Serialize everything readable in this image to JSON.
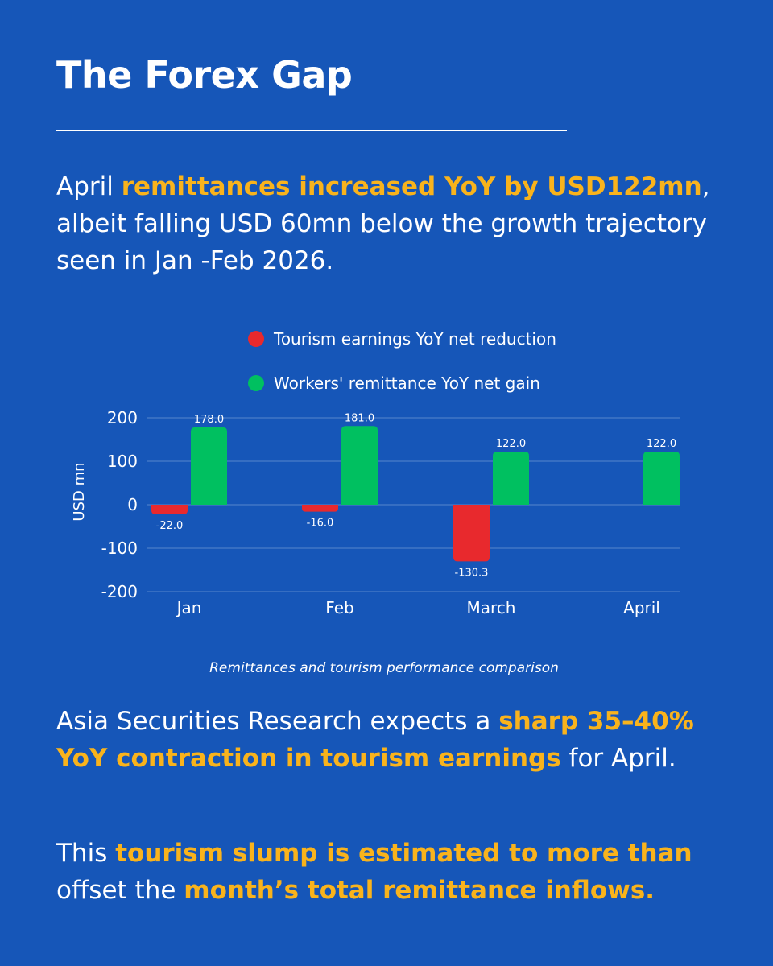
{
  "header": {
    "title": "The Forex Gap"
  },
  "intro": {
    "before": "April ",
    "highlight": "remittances increased YoY by USD122mn",
    "after": ", albeit falling USD 60mn below the growth trajectory seen in Jan -Feb 2026."
  },
  "chart_data": {
    "type": "bar",
    "categories": [
      "Jan",
      "Feb",
      "March",
      "April"
    ],
    "series": [
      {
        "name": "Tourism earnings YoY net reduction",
        "color": "#e8292d",
        "values": [
          -22.0,
          -16.0,
          -130.3,
          null
        ],
        "labels": [
          "-22.0",
          "-16.0",
          "-130.3",
          ""
        ]
      },
      {
        "name": "Workers' remittance YoY net gain",
        "color": "#00c060",
        "values": [
          178.0,
          181.0,
          122.0,
          122.0
        ],
        "labels": [
          "178.0",
          "181.0",
          "122.0",
          "122.0"
        ]
      }
    ],
    "ylabel": "USD mn",
    "ylim": [
      -200,
      200
    ],
    "yticks": [
      200,
      100,
      0,
      -100,
      -200
    ],
    "ytick_labels": [
      "200",
      "100",
      "0",
      "-100",
      "-200"
    ],
    "grid": true,
    "legend_position": "top"
  },
  "caption": "Remittances and tourism performance comparison",
  "para2": {
    "before": "Asia Securities Research expects a ",
    "highlight": "sharp 35–40% YoY contraction in tourism earnings",
    "after": " for April."
  },
  "para3": {
    "before": "This ",
    "highlight1": "tourism slump is estimated to more than",
    "middle": " offset the ",
    "highlight2": "month’s total remittance inflows."
  }
}
